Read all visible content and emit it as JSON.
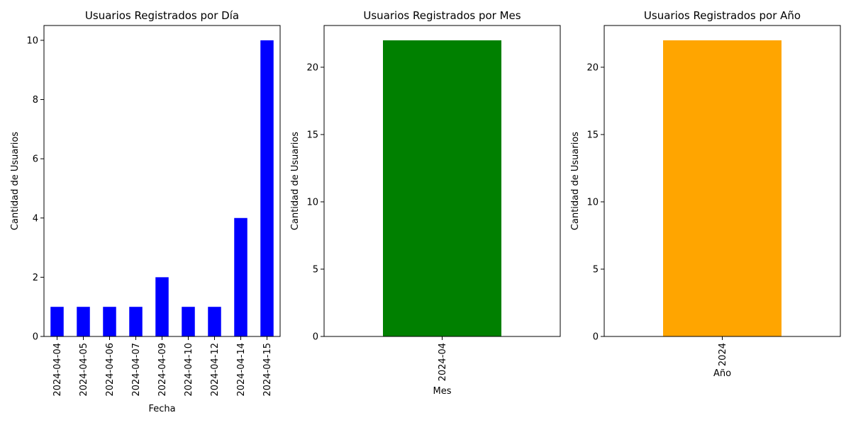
{
  "chart_data": [
    {
      "type": "bar",
      "title": "Usuarios Registrados por Día",
      "xlabel": "Fecha",
      "ylabel": "Cantidad de Usuarios",
      "categories": [
        "2024-04-04",
        "2024-04-05",
        "2024-04-06",
        "2024-04-07",
        "2024-04-09",
        "2024-04-10",
        "2024-04-12",
        "2024-04-14",
        "2024-04-15"
      ],
      "values": [
        1,
        1,
        1,
        1,
        2,
        1,
        1,
        4,
        10
      ],
      "ylim": [
        0,
        10.5
      ],
      "yticks": [
        0,
        2,
        4,
        6,
        8,
        10
      ],
      "color": "#0000ff",
      "grid": false
    },
    {
      "type": "bar",
      "title": "Usuarios Registrados por Mes",
      "xlabel": "Mes",
      "ylabel": "Cantidad de Usuarios",
      "categories": [
        "2024-04"
      ],
      "values": [
        22
      ],
      "ylim": [
        0,
        23.1
      ],
      "yticks": [
        0,
        5,
        10,
        15,
        20
      ],
      "color": "#008000",
      "grid": false
    },
    {
      "type": "bar",
      "title": "Usuarios Registrados por Año",
      "xlabel": "Año",
      "ylabel": "Cantidad de Usuarios",
      "categories": [
        "2024"
      ],
      "values": [
        22
      ],
      "ylim": [
        0,
        23.1
      ],
      "yticks": [
        0,
        5,
        10,
        15,
        20
      ],
      "color": "#ffa500",
      "grid": false
    }
  ]
}
